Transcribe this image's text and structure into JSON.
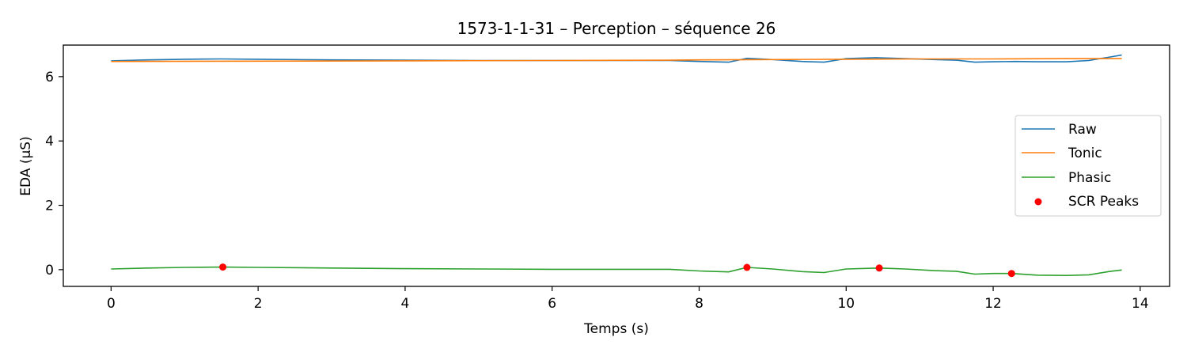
{
  "chart_data": {
    "type": "line",
    "title": "1573-1-1-31 – Perception – séquence 26",
    "xlabel": "Temps (s)",
    "ylabel": "EDA (µS)",
    "xlim": [
      -0.65,
      14.4
    ],
    "ylim": [
      -0.52,
      6.98
    ],
    "xticks": [
      0,
      2,
      4,
      6,
      8,
      10,
      12,
      14
    ],
    "xtick_labels": [
      "0",
      "2",
      "4",
      "6",
      "8",
      "10",
      "12",
      "14"
    ],
    "yticks": [
      0,
      2,
      4,
      6
    ],
    "ytick_labels": [
      "0",
      "2",
      "4",
      "6"
    ],
    "grid": false,
    "legend_position": "center-right",
    "series": [
      {
        "name": "Raw",
        "color": "#1f77b4",
        "x": [
          0,
          0.5,
          1.0,
          1.5,
          2.0,
          3.0,
          4.0,
          5.0,
          6.0,
          7.0,
          7.6,
          8.0,
          8.4,
          8.65,
          9.0,
          9.4,
          9.7,
          10.0,
          10.4,
          10.8,
          11.2,
          11.5,
          11.75,
          12.0,
          12.3,
          12.6,
          13.0,
          13.3,
          13.75
        ],
        "y": [
          6.49,
          6.52,
          6.54,
          6.55,
          6.54,
          6.52,
          6.51,
          6.5,
          6.5,
          6.5,
          6.5,
          6.47,
          6.45,
          6.57,
          6.53,
          6.47,
          6.45,
          6.56,
          6.59,
          6.56,
          6.53,
          6.51,
          6.45,
          6.46,
          6.47,
          6.46,
          6.46,
          6.5,
          6.67
        ]
      },
      {
        "name": "Tonic",
        "color": "#ff7f0e",
        "x": [
          0,
          2,
          4,
          6,
          7.6,
          8.0,
          9.0,
          10.0,
          11.0,
          12.0,
          13.0,
          13.75
        ],
        "y": [
          6.47,
          6.48,
          6.49,
          6.5,
          6.51,
          6.52,
          6.53,
          6.54,
          6.55,
          6.55,
          6.56,
          6.56
        ]
      },
      {
        "name": "Phasic",
        "color": "#2ca02c",
        "x": [
          0,
          0.5,
          1.0,
          1.52,
          2.0,
          3.0,
          4.0,
          5.0,
          6.0,
          7.0,
          7.6,
          8.0,
          8.4,
          8.65,
          9.0,
          9.4,
          9.7,
          10.0,
          10.45,
          10.8,
          11.2,
          11.5,
          11.75,
          12.0,
          12.25,
          12.6,
          13.0,
          13.3,
          13.6,
          13.75
        ],
        "y": [
          0.02,
          0.05,
          0.07,
          0.08,
          0.07,
          0.05,
          0.03,
          0.02,
          0.01,
          0.01,
          0.01,
          -0.04,
          -0.07,
          0.07,
          0.02,
          -0.06,
          -0.09,
          0.02,
          0.05,
          0.02,
          -0.03,
          -0.05,
          -0.14,
          -0.12,
          -0.12,
          -0.17,
          -0.18,
          -0.16,
          -0.05,
          -0.01
        ]
      }
    ],
    "scatter": {
      "name": "SCR Peaks",
      "color": "#ff0000",
      "x": [
        1.52,
        8.65,
        10.45,
        12.25
      ],
      "y": [
        0.08,
        0.07,
        0.05,
        -0.12
      ]
    },
    "legend": [
      "Raw",
      "Tonic",
      "Phasic",
      "SCR Peaks"
    ]
  }
}
